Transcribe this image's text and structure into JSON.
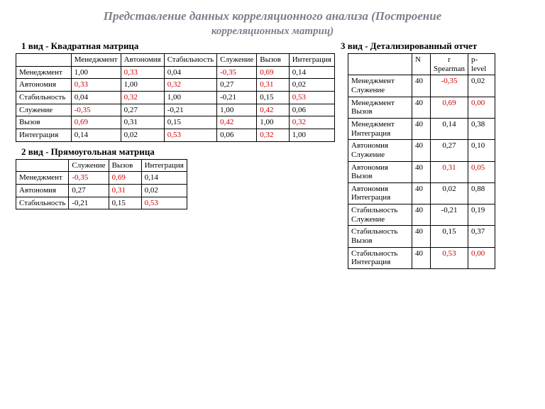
{
  "title_line1": "Представление данных корреляционного анализа  (Построение",
  "title_line2": "корреляционных матриц)",
  "labels": {
    "type1": "1 вид  - Квадратная матрица",
    "type2": "2 вид  - Прямоугольная матрица",
    "type3": "3 вид - Детализированный отчет"
  },
  "colors": {
    "background": "#ffffff",
    "text": "#000000",
    "title": "#7e7e8c",
    "border": "#000000",
    "highlight": "#cc0000"
  },
  "typography": {
    "body_font": "Times New Roman",
    "body_fontsize_pt": 9,
    "title_fontsize_pt": 13,
    "label_fontsize_pt": 10
  },
  "table1": {
    "type": "table",
    "note": "square correlation matrix",
    "corner": "",
    "columns_full": [
      "Менеджмент",
      "Автономия",
      "Стабильность",
      "Служение",
      "Вызов",
      "Интеграция"
    ],
    "columns_display": [
      "Менеджмент",
      "Автономия",
      "Стабильность",
      "Служение",
      "Вызов",
      "Интеграция"
    ],
    "rows": [
      "Менеджмент",
      "Автономия",
      "Стабильность",
      "Служение",
      "Вызов",
      "Интеграция"
    ],
    "values": [
      [
        "1,00",
        "0,33",
        "0,04",
        "-0,35",
        "0,69",
        "0,14"
      ],
      [
        "0,33",
        "1,00",
        "0,32",
        "0,27",
        "0,31",
        "0,02"
      ],
      [
        "0,04",
        "0,32",
        "1,00",
        "-0,21",
        "0,15",
        "0,53"
      ],
      [
        "-0,35",
        "0,27",
        "-0,21",
        "1,00",
        "0,42",
        "0,06"
      ],
      [
        "0,69",
        "0,31",
        "0,15",
        "0,42",
        "1,00",
        "0,32"
      ],
      [
        "0,14",
        "0,02",
        "0,53",
        "0,06",
        "0,32",
        "1,00"
      ]
    ],
    "highlight": [
      [
        false,
        true,
        false,
        true,
        true,
        false
      ],
      [
        true,
        false,
        true,
        false,
        true,
        false
      ],
      [
        false,
        true,
        false,
        false,
        false,
        true
      ],
      [
        true,
        false,
        false,
        false,
        true,
        false
      ],
      [
        true,
        false,
        false,
        true,
        false,
        true
      ],
      [
        false,
        false,
        true,
        false,
        true,
        false
      ]
    ]
  },
  "table2": {
    "type": "table",
    "note": "rectangular matrix",
    "corner": "",
    "columns_full": [
      "Служение",
      "Вызов",
      "Интеграция"
    ],
    "rows": [
      "Менеджмент",
      "Автономия",
      "Стабильность"
    ],
    "values": [
      [
        "-0,35",
        "0,69",
        "0,14"
      ],
      [
        "0,27",
        "0,31",
        "0,02"
      ],
      [
        "-0,21",
        "0,15",
        "0,53"
      ]
    ],
    "highlight": [
      [
        true,
        true,
        false
      ],
      [
        false,
        true,
        false
      ],
      [
        false,
        false,
        true
      ]
    ]
  },
  "table3": {
    "type": "table",
    "note": "detailed report",
    "columns": [
      "",
      "N",
      "r Spearman",
      "p-level"
    ],
    "rows": [
      {
        "pair": "Менеджмент Служение",
        "n": "40",
        "r": "-0,35",
        "p": "0,02",
        "r_hl": true,
        "p_hl": false
      },
      {
        "pair": "Менеджмент Вызов",
        "n": "40",
        "r": "0,69",
        "p": "0,00",
        "r_hl": true,
        "p_hl": true
      },
      {
        "pair": "Менеджмент Интеграция",
        "n": "40",
        "r": "0,14",
        "p": "0,38",
        "r_hl": false,
        "p_hl": false
      },
      {
        "pair": "Автономия Служение",
        "n": "40",
        "r": "0,27",
        "p": "0,10",
        "r_hl": false,
        "p_hl": false
      },
      {
        "pair": "Автономия Вызов",
        "n": "40",
        "r": "0,31",
        "p": "0,05",
        "r_hl": true,
        "p_hl": true
      },
      {
        "pair": "Автономия Интеграция",
        "n": "40",
        "r": "0,02",
        "p": "0,88",
        "r_hl": false,
        "p_hl": false
      },
      {
        "pair": "Стабильность Служение",
        "n": "40",
        "r": "-0,21",
        "p": "0,19",
        "r_hl": false,
        "p_hl": false
      },
      {
        "pair": "Стабильность Вызов",
        "n": "40",
        "r": "0,15",
        "p": "0,37",
        "r_hl": false,
        "p_hl": false
      },
      {
        "pair": "Стабильность Интеграция",
        "n": "40",
        "r": "0,53",
        "p": "0,00",
        "r_hl": true,
        "p_hl": true
      }
    ]
  }
}
